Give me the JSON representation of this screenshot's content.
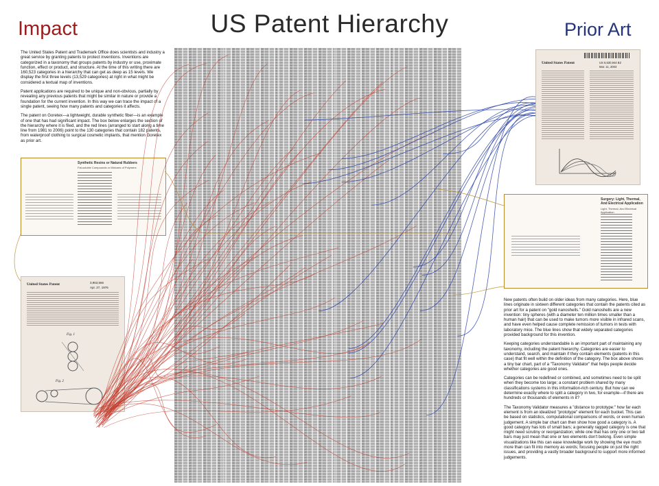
{
  "title": "US Patent Hierarchy",
  "impact_heading": "Impact",
  "prior_art_heading": "Prior Art",
  "intro_paragraphs": [
    "The United States Patent and Trademark Office does scientists and industry a great service by granting patents to protect inventions. Inventions are categorized in a taxonomy that groups patents by industry or use, proximate function, effect or product, and structure. At the time of this writing there are 160,523 categories in a hierarchy that can get as deep as 15 levels. We display the first three levels (13,529 categories) at right in what might be considered a textual map of inventions.",
    "Patent applications are required to be unique and non-obvious, partially by revealing any previous patents that might be similar in nature or provide a foundation for the current invention. In this way we can trace the impact of a single patent, seeing how many patents and categories it affects.",
    "The patent on Goretex—a lightweight, durable synthetic fiber—is an example of one that has had significant impact. The box below enlarges the section of the hierarchy where it is filed, and the red lines (arranged to start along a time line from 1981 to 2006) point to the 130 categories that contain 182 patents, from waterproof clothing to surgical cosmetic implants, that mention Goretex as prior art."
  ],
  "right_paragraphs": [
    "New patents often build on older ideas from many categories. Here, blue lines originate in sixteen different categories that contain the patents cited as prior art for a patent on \"gold nanoshells.\" Gold nanoshells are a new invention: tiny spheres (with a diameter ten million times smaller than a human hair) that can be used to make tumors more visible in infrared scans, and have even helped cause complete remission of tumors in tests with laboratory mice. The blue lines show that widely separated categories provided background for this invention.",
    "Keeping categories understandable is an important part of maintaining any taxonomy, including the patent hierarchy. Categories are easier to understand, search, and maintain if they contain elements (patents in this case) that fit well within the definition of the category. The box above shows a tiny bar chart, part of a \"Taxonomy Validator\" that helps people decide whether categories are good ones.",
    "Categories can be redefined or combined, and sometimes need to be split when they become too large; a constant problem shared by many classifications systems in this information-rich century. But how can we determine exactly where to split a category in two, for example—if there are hundreds or thousands of elements in it?",
    "The Taxonomy Validator measures a \"distance to prototype:\" how far each element is from an idealized \"prototype\" element for each bucket. This can be based on statistics, computational comparisons of words, or even human judgement. A simple bar chart can then show how good a category is. A good category has lots of small bars; a generally ragged category is one that might need scrutiny or reorganization; while one that has only one or two tall bars may just mean that one or two elements don't belong. Even simple visualizations like this can ease knowledge work by showing the eye much more than can fit into memory as words; focusing people on just the right issues, and providing a vastly broader background to support more informed judgements."
  ],
  "impact_box": {
    "title": "Synthetic Resins or Natural Rubbers",
    "subtitle": "Fat-soluble Compounds or Mixtures of Polymers"
  },
  "goretex_patent": {
    "header": "United States Patent",
    "number": "3,953,566",
    "date": "Apr. 27, 1976",
    "fig_label_1": "Fig. 1",
    "fig_label_2": "Fig. 2"
  },
  "prior_art_patent": {
    "header": "United States Patent",
    "number": "US 6,530,944 B2",
    "date": "Mar. 11, 2003"
  },
  "validator_box": {
    "title": "Surgery: Light, Thermal, And Electrical Application",
    "subtitle": "Light, Thermal, And Electrical Application"
  },
  "colors": {
    "impact_red": "#9b1c1c",
    "prior_art_blue": "#23347a",
    "red_lines": "#c0392b",
    "blue_lines": "#2941a8",
    "gold_outline": "#b88a2a"
  }
}
